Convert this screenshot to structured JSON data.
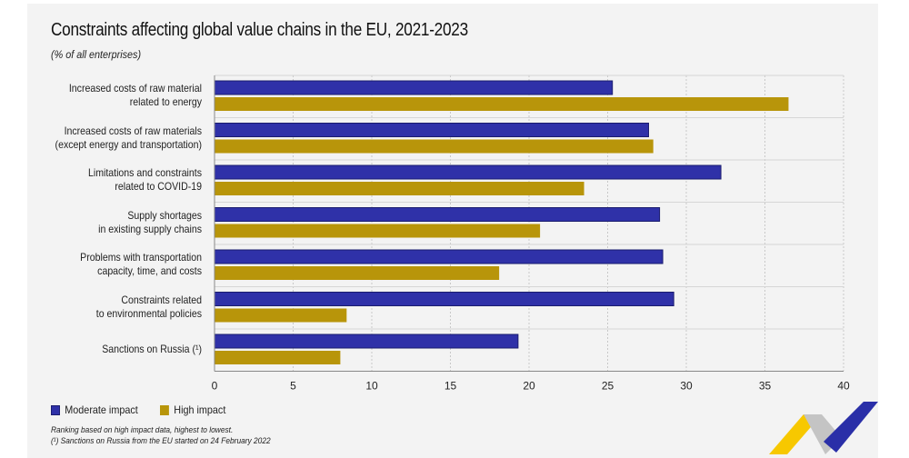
{
  "chart_data": {
    "type": "bar",
    "orientation": "horizontal",
    "title": "Constraints affecting global value chains in the EU, 2021-2023",
    "subtitle": "(% of all enterprises)",
    "xlabel": "",
    "ylabel": "",
    "xlim": [
      0,
      40
    ],
    "xticks": [
      0,
      5,
      10,
      15,
      20,
      25,
      30,
      35,
      40
    ],
    "grid": true,
    "legend_position": "bottom-left",
    "categories": [
      [
        "Increased costs of raw material",
        "related to energy"
      ],
      [
        "Increased costs of raw materials",
        "(except energy and transportation)"
      ],
      [
        "Limitations and constraints",
        "related to COVID-19"
      ],
      [
        "Supply shortages",
        "in existing supply chains"
      ],
      [
        "Problems with transportation",
        "capacity, time, and costs"
      ],
      [
        "Constraints related",
        "to environmental policies"
      ],
      [
        "Sanctions on Russia (¹)"
      ]
    ],
    "series": [
      {
        "name": "Moderate impact",
        "color": "#2f31a8",
        "values": [
          25.3,
          27.6,
          32.2,
          28.3,
          28.5,
          29.2,
          19.3
        ]
      },
      {
        "name": "High impact",
        "color": "#b8950a",
        "values": [
          36.5,
          27.9,
          23.5,
          20.7,
          18.1,
          8.4,
          8.0
        ]
      }
    ]
  },
  "notes": [
    "Ranking based on high impact data, highest to lowest.",
    "(¹) Sanctions on Russia from the EU started on 24 February 2022"
  ]
}
